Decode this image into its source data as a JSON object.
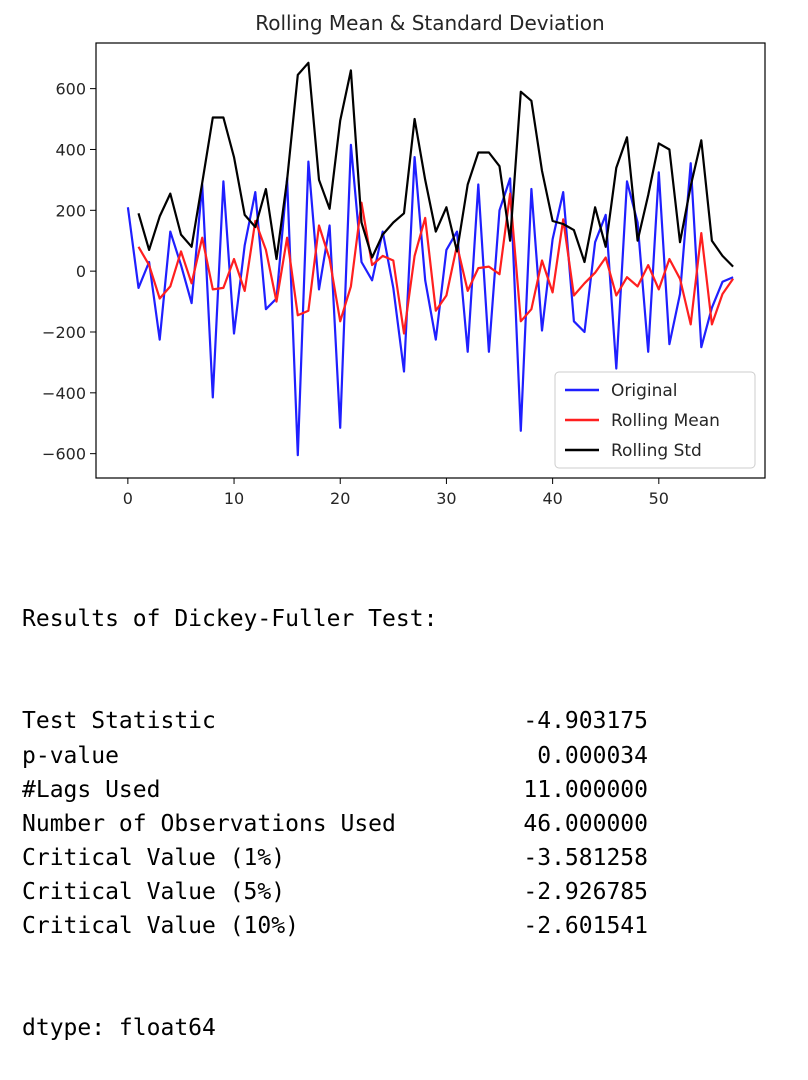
{
  "chart_data": {
    "type": "line",
    "title": "Rolling Mean & Standard Deviation",
    "xlabel": "",
    "ylabel": "",
    "xlim": [
      -3,
      60
    ],
    "ylim": [
      -680,
      750
    ],
    "xticks": [
      0,
      10,
      20,
      30,
      40,
      50
    ],
    "yticks": [
      -600,
      -400,
      -200,
      0,
      200,
      400,
      600
    ],
    "xtick_labels": [
      "0",
      "10",
      "20",
      "30",
      "40",
      "50"
    ],
    "ytick_labels": [
      "−600",
      "−400",
      "−200",
      "0",
      "200",
      "400",
      "600"
    ],
    "grid": false,
    "legend_position": "lower right",
    "series": [
      {
        "name": "Original",
        "color": "#1f1fff",
        "x": [
          0,
          1,
          2,
          3,
          4,
          5,
          6,
          7,
          8,
          9,
          10,
          11,
          12,
          13,
          14,
          15,
          16,
          17,
          18,
          19,
          20,
          21,
          22,
          23,
          24,
          25,
          26,
          27,
          28,
          29,
          30,
          31,
          32,
          33,
          34,
          35,
          36,
          37,
          38,
          39,
          40,
          41,
          42,
          43,
          44,
          45,
          46,
          47,
          48,
          49,
          50,
          51,
          52,
          53,
          54,
          55,
          56,
          57
        ],
        "values": [
          210,
          -55,
          30,
          -225,
          130,
          20,
          -105,
          285,
          -415,
          295,
          -205,
          85,
          260,
          -125,
          -90,
          305,
          -605,
          360,
          -60,
          150,
          -515,
          415,
          30,
          -30,
          130,
          -55,
          -330,
          375,
          -30,
          -225,
          70,
          130,
          -265,
          285,
          -265,
          200,
          305,
          -525,
          270,
          -195,
          105,
          260,
          -165,
          -200,
          95,
          185,
          -320,
          295,
          160,
          -265,
          325,
          -240,
          -75,
          355,
          -250,
          -120,
          -35,
          -20
        ]
      },
      {
        "name": "Rolling Mean",
        "color": "#ff1f1f",
        "x": [
          1,
          2,
          3,
          4,
          5,
          6,
          7,
          8,
          9,
          10,
          11,
          12,
          13,
          14,
          15,
          16,
          17,
          18,
          19,
          20,
          21,
          22,
          23,
          24,
          25,
          26,
          27,
          28,
          29,
          30,
          31,
          32,
          33,
          34,
          35,
          36,
          37,
          38,
          39,
          40,
          41,
          42,
          43,
          44,
          45,
          46,
          47,
          48,
          49,
          50,
          51,
          52,
          53,
          54,
          55,
          56,
          57
        ],
        "values": [
          80,
          20,
          -90,
          -50,
          65,
          -40,
          110,
          -60,
          -55,
          40,
          -65,
          165,
          70,
          -100,
          110,
          -145,
          -130,
          150,
          40,
          -165,
          -50,
          225,
          20,
          50,
          35,
          -205,
          50,
          175,
          -130,
          -80,
          85,
          -65,
          10,
          15,
          -10,
          255,
          -165,
          -125,
          35,
          -70,
          170,
          -80,
          -40,
          -5,
          45,
          -80,
          -20,
          -50,
          20,
          -60,
          40,
          -25,
          -175,
          125,
          -175,
          -75,
          -25
        ]
      },
      {
        "name": "Rolling Std",
        "color": "#000000",
        "x": [
          1,
          2,
          3,
          4,
          5,
          6,
          7,
          8,
          9,
          10,
          11,
          12,
          13,
          14,
          15,
          16,
          17,
          18,
          19,
          20,
          21,
          22,
          23,
          24,
          25,
          26,
          27,
          28,
          29,
          30,
          31,
          32,
          33,
          34,
          35,
          36,
          37,
          38,
          39,
          40,
          41,
          42,
          43,
          44,
          45,
          46,
          47,
          48,
          49,
          50,
          51,
          52,
          53,
          54,
          55,
          56,
          57
        ],
        "values": [
          190,
          70,
          180,
          255,
          120,
          80,
          290,
          505,
          505,
          375,
          185,
          145,
          270,
          40,
          300,
          645,
          685,
          300,
          205,
          495,
          660,
          160,
          45,
          120,
          160,
          190,
          500,
          300,
          130,
          210,
          65,
          285,
          390,
          390,
          345,
          100,
          590,
          560,
          330,
          165,
          155,
          135,
          30,
          210,
          80,
          340,
          440,
          100,
          250,
          420,
          400,
          95,
          280,
          430,
          100,
          50,
          15
        ]
      }
    ]
  },
  "df_test": {
    "heading": "Results of Dickey-Fuller Test:",
    "rows": [
      {
        "label": "Test Statistic",
        "value": "-4.903175"
      },
      {
        "label": "p-value",
        "value": "0.000034"
      },
      {
        "label": "#Lags Used",
        "value": "11.000000"
      },
      {
        "label": "Number of Observations Used",
        "value": "46.000000"
      },
      {
        "label": "Critical Value (1%)",
        "value": "-3.581258"
      },
      {
        "label": "Critical Value (5%)",
        "value": "-2.926785"
      },
      {
        "label": "Critical Value (10%)",
        "value": "-2.601541"
      }
    ],
    "dtype": "dtype: float64"
  }
}
